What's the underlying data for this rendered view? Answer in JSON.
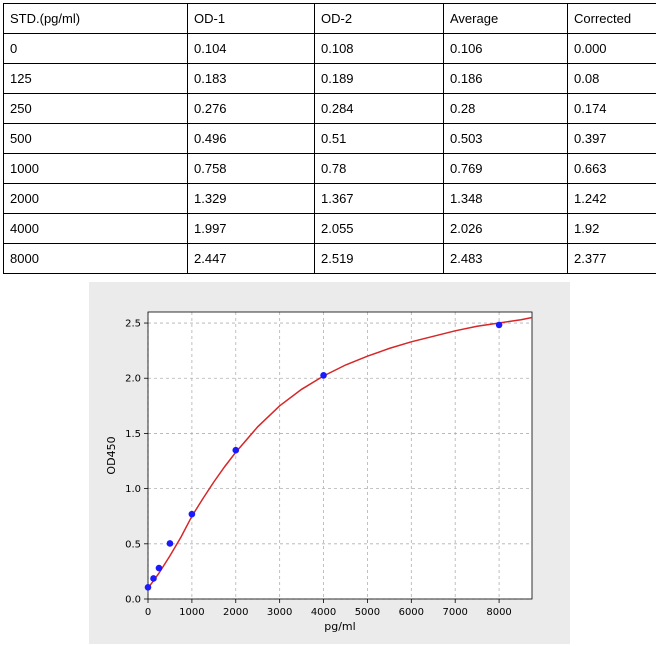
{
  "table": {
    "headers": [
      "STD.(pg/ml)",
      "OD-1",
      "OD-2",
      "Average",
      "Corrected"
    ],
    "rows": [
      [
        "0",
        "0.104",
        "0.108",
        "0.106",
        "0.000"
      ],
      [
        "125",
        "0.183",
        "0.189",
        "0.186",
        "0.08"
      ],
      [
        "250",
        "0.276",
        "0.284",
        "0.28",
        "0.174"
      ],
      [
        "500",
        "0.496",
        "0.51",
        "0.503",
        "0.397"
      ],
      [
        "1000",
        "0.758",
        "0.78",
        "0.769",
        "0.663"
      ],
      [
        "2000",
        "1.329",
        "1.367",
        "1.348",
        "1.242"
      ],
      [
        "4000",
        "1.997",
        "2.055",
        "2.026",
        "1.92"
      ],
      [
        "8000",
        "2.447",
        "2.519",
        "2.483",
        "2.377"
      ]
    ]
  },
  "chart_data": {
    "type": "scatter",
    "xlabel": "pg/ml",
    "ylabel": "OD450",
    "xlim": [
      0,
      8750
    ],
    "ylim": [
      0,
      2.6
    ],
    "xticks": [
      0,
      1000,
      2000,
      3000,
      4000,
      5000,
      6000,
      7000,
      8000
    ],
    "yticks": [
      0.0,
      0.5,
      1.0,
      1.5,
      2.0,
      2.5
    ],
    "grid": true,
    "series": [
      {
        "kind": "points",
        "x": [
          0,
          125,
          250,
          500,
          1000,
          2000,
          4000,
          8000
        ],
        "y": [
          0.106,
          0.186,
          0.28,
          0.503,
          0.769,
          1.348,
          2.026,
          2.483
        ]
      },
      {
        "kind": "fit-curve",
        "x": [
          0,
          125,
          250,
          500,
          750,
          1000,
          1250,
          1500,
          1750,
          2000,
          2500,
          3000,
          3500,
          4000,
          4500,
          5000,
          5500,
          6000,
          6500,
          7000,
          7500,
          8000,
          8500,
          8750
        ],
        "y": [
          0.1,
          0.165,
          0.235,
          0.39,
          0.56,
          0.75,
          0.91,
          1.06,
          1.2,
          1.33,
          1.56,
          1.75,
          1.9,
          2.02,
          2.12,
          2.2,
          2.27,
          2.33,
          2.38,
          2.43,
          2.47,
          2.5,
          2.53,
          2.55
        ]
      }
    ],
    "colors": {
      "points": "#1a1aff",
      "curve": "#d62728"
    }
  }
}
